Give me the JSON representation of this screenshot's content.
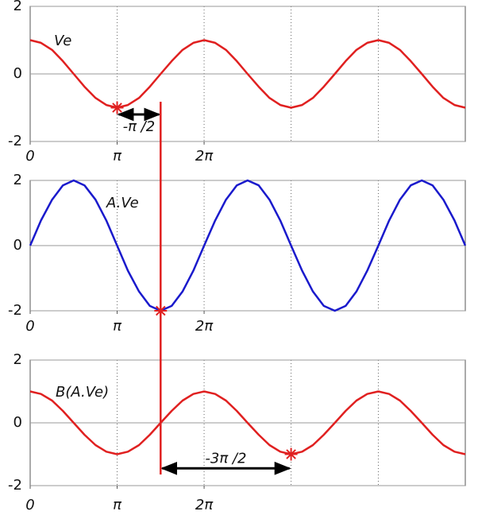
{
  "chart_data": [
    {
      "type": "line",
      "x": [
        0,
        0.39,
        0.79,
        1.18,
        1.57,
        1.96,
        2.36,
        2.75,
        3.14,
        3.53,
        3.93,
        4.32,
        4.71,
        5.11,
        5.5,
        5.89,
        6.28,
        6.68,
        7.07,
        7.46,
        7.85,
        8.25,
        8.64,
        9.03,
        9.42,
        9.82,
        10.21,
        10.6,
        11.0,
        11.39,
        11.78,
        12.17,
        12.57,
        12.96,
        13.35,
        13.74,
        14.14,
        14.53,
        14.92,
        15.32,
        15.71
      ],
      "series": [
        {
          "name": "Ve",
          "color": "#e02020",
          "values": [
            1,
            0.92,
            0.71,
            0.38,
            0,
            -0.38,
            -0.71,
            -0.92,
            -1,
            -0.92,
            -0.71,
            -0.38,
            0,
            0.38,
            0.71,
            0.92,
            1,
            0.92,
            0.71,
            0.38,
            0,
            -0.38,
            -0.71,
            -0.92,
            -1,
            -0.92,
            -0.71,
            -0.38,
            0,
            0.38,
            0.71,
            0.92,
            1,
            0.92,
            0.71,
            0.38,
            0,
            -0.38,
            -0.71,
            -0.92,
            -1
          ]
        }
      ],
      "xlim": [
        0,
        15.71
      ],
      "ylim": [
        -2,
        2
      ],
      "yticks": [
        -2,
        0,
        2
      ],
      "xticks": [
        0,
        {
          "value": 3.14,
          "label": "π"
        },
        {
          "value": 6.28,
          "label": "2π"
        }
      ],
      "x_gridlines": [
        3.14,
        6.28,
        9.42,
        12.57
      ],
      "markers": [
        {
          "x": 3.14,
          "y": -1
        }
      ],
      "annotations": [
        {
          "text": "-π /2",
          "x_start": 3.14,
          "x_end": 4.71,
          "y": -1.2
        }
      ]
    },
    {
      "type": "line",
      "x": [
        0,
        0.39,
        0.79,
        1.18,
        1.57,
        1.96,
        2.36,
        2.75,
        3.14,
        3.53,
        3.93,
        4.32,
        4.71,
        5.11,
        5.5,
        5.89,
        6.28,
        6.68,
        7.07,
        7.46,
        7.85,
        8.25,
        8.64,
        9.03,
        9.42,
        9.82,
        10.21,
        10.6,
        11.0,
        11.39,
        11.78,
        12.17,
        12.57,
        12.96,
        13.35,
        13.74,
        14.14,
        14.53,
        14.92,
        15.32,
        15.71
      ],
      "series": [
        {
          "name": "A.Ve",
          "color": "#1a1acc",
          "values": [
            0,
            0.77,
            1.41,
            1.85,
            2,
            1.85,
            1.41,
            0.77,
            0,
            -0.77,
            -1.41,
            -1.85,
            -2,
            -1.85,
            -1.41,
            -0.77,
            0,
            0.77,
            1.41,
            1.85,
            2,
            1.85,
            1.41,
            0.77,
            0,
            -0.77,
            -1.41,
            -1.85,
            -2,
            -1.85,
            -1.41,
            -0.77,
            0,
            0.77,
            1.41,
            1.85,
            2,
            1.85,
            1.41,
            0.77,
            0
          ]
        }
      ],
      "xlim": [
        0,
        15.71
      ],
      "ylim": [
        -2,
        2
      ],
      "yticks": [
        -2,
        0,
        2
      ],
      "xticks": [
        0,
        {
          "value": 3.14,
          "label": "π"
        },
        {
          "value": 6.28,
          "label": "2π"
        }
      ],
      "x_gridlines": [
        3.14,
        6.28,
        9.42,
        12.57
      ],
      "markers": [
        {
          "x": 4.71,
          "y": -2
        }
      ],
      "annotations": []
    },
    {
      "type": "line",
      "x": [
        0,
        0.39,
        0.79,
        1.18,
        1.57,
        1.96,
        2.36,
        2.75,
        3.14,
        3.53,
        3.93,
        4.32,
        4.71,
        5.11,
        5.5,
        5.89,
        6.28,
        6.68,
        7.07,
        7.46,
        7.85,
        8.25,
        8.64,
        9.03,
        9.42,
        9.82,
        10.21,
        10.6,
        11.0,
        11.39,
        11.78,
        12.17,
        12.57,
        12.96,
        13.35,
        13.74,
        14.14,
        14.53,
        14.92,
        15.32,
        15.71
      ],
      "series": [
        {
          "name": "B(A.Ve)",
          "color": "#e02020",
          "values": [
            1,
            0.92,
            0.71,
            0.38,
            0,
            -0.38,
            -0.71,
            -0.92,
            -1,
            -0.92,
            -0.71,
            -0.38,
            0,
            0.38,
            0.71,
            0.92,
            1,
            0.92,
            0.71,
            0.38,
            0,
            -0.38,
            -0.71,
            -0.92,
            -1,
            -0.92,
            -0.71,
            -0.38,
            0,
            0.38,
            0.71,
            0.92,
            1,
            0.92,
            0.71,
            0.38,
            0,
            -0.38,
            -0.71,
            -0.92,
            -1
          ]
        }
      ],
      "xlim": [
        0,
        15.71
      ],
      "ylim": [
        -2,
        2
      ],
      "yticks": [
        -2,
        0,
        2
      ],
      "xticks": [
        0,
        {
          "value": 3.14,
          "label": "π"
        },
        {
          "value": 6.28,
          "label": "2π"
        }
      ],
      "x_gridlines": [
        3.14,
        6.28,
        9.42,
        12.57
      ],
      "markers": [
        {
          "x": 9.42,
          "y": -1
        }
      ],
      "annotations": [
        {
          "text": "-3π /2",
          "x_start": 4.71,
          "x_end": 9.42,
          "y": -1.45
        }
      ]
    }
  ],
  "vertical_line": {
    "x": 4.71,
    "color": "#e02020"
  }
}
